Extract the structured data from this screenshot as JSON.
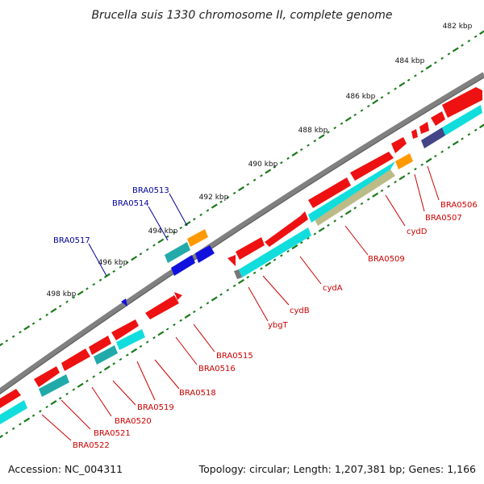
{
  "title": "Brucella suis 1330 chromosome II, complete genome",
  "footer": {
    "accession": "Accession: NC_004311",
    "summary": "Topology: circular; Length: 1,207,381 bp; Genes: 1,166"
  },
  "colors": {
    "red": "#ee1111",
    "cyan": "#11dddd",
    "teal": "#22aaaa",
    "orange": "#ff9900",
    "blue": "#1111dd",
    "navy": "#444488",
    "olive": "#bbbb88",
    "grey": "#777777",
    "tick_green": "#1a7a1a",
    "label_red": "#cc0000",
    "label_blue": "#000099"
  },
  "kbp_ticks": [
    "482 kbp",
    "484 kbp",
    "486 kbp",
    "488 kbp",
    "490 kbp",
    "492 kbp",
    "494 kbp",
    "496 kbp",
    "498 kbp"
  ],
  "genes": [
    {
      "name": "BRA0506",
      "side": "right"
    },
    {
      "name": "BRA0507",
      "side": "right"
    },
    {
      "name": "cydD",
      "side": "right"
    },
    {
      "name": "BRA0509",
      "side": "right"
    },
    {
      "name": "cydA",
      "side": "right"
    },
    {
      "name": "cydB",
      "side": "right"
    },
    {
      "name": "ybgT",
      "side": "right"
    },
    {
      "name": "BRA0515",
      "side": "right"
    },
    {
      "name": "BRA0516",
      "side": "right"
    },
    {
      "name": "BRA0518",
      "side": "right"
    },
    {
      "name": "BRA0519",
      "side": "right"
    },
    {
      "name": "BRA0520",
      "side": "right"
    },
    {
      "name": "BRA0521",
      "side": "right"
    },
    {
      "name": "BRA0522",
      "side": "right"
    },
    {
      "name": "BRA0513",
      "side": "left"
    },
    {
      "name": "BRA0514",
      "side": "left"
    },
    {
      "name": "BRA0517",
      "side": "left"
    }
  ]
}
